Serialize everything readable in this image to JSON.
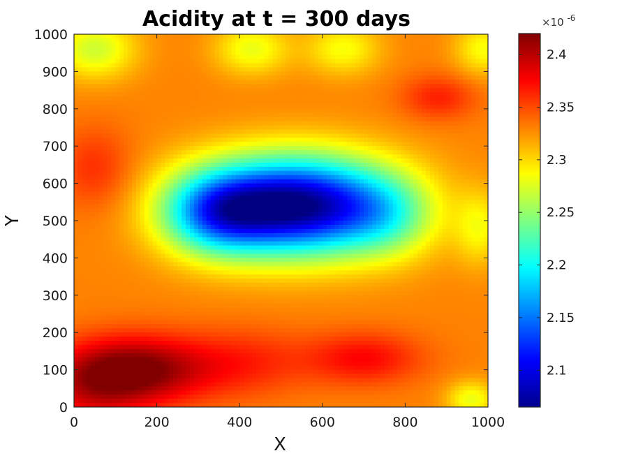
{
  "chart_data": {
    "type": "heatmap",
    "title": "Acidity at t = 300 days",
    "xlabel": "X",
    "ylabel": "Y",
    "xlim": [
      0,
      1000
    ],
    "ylim": [
      0,
      1000
    ],
    "x_ticks": [
      "0",
      "200",
      "400",
      "600",
      "800",
      "1000"
    ],
    "y_ticks": [
      "0",
      "100",
      "200",
      "300",
      "400",
      "500",
      "600",
      "700",
      "800",
      "900",
      "1000"
    ],
    "colormap": "jet",
    "colorbar": {
      "range": [
        2.065,
        2.42
      ],
      "ticks": [
        "2.1",
        "2.15",
        "2.2",
        "2.25",
        "2.3",
        "2.35",
        "2.4"
      ],
      "exponent_label": "×10",
      "exponent_power": "-6"
    },
    "field_base": 2.33,
    "features": [
      {
        "kind": "low",
        "x": 540,
        "y": 540,
        "amplitude": -0.265,
        "spread_x": 230,
        "spread_y": 130
      },
      {
        "kind": "low",
        "x": 340,
        "y": 520,
        "amplitude": -0.12,
        "spread_x": 130,
        "spread_y": 110
      },
      {
        "kind": "low",
        "x": 760,
        "y": 510,
        "amplitude": -0.05,
        "spread_x": 110,
        "spread_y": 110
      },
      {
        "kind": "high",
        "x": 150,
        "y": 100,
        "amplitude": 0.09,
        "spread_x": 180,
        "spread_y": 90
      },
      {
        "kind": "high",
        "x": 40,
        "y": 40,
        "amplitude": 0.04,
        "spread_x": 140,
        "spread_y": 100
      },
      {
        "kind": "high",
        "x": 420,
        "y": 120,
        "amplitude": 0.03,
        "spread_x": 150,
        "spread_y": 90
      },
      {
        "kind": "high",
        "x": 700,
        "y": 130,
        "amplitude": 0.045,
        "spread_x": 140,
        "spread_y": 70
      },
      {
        "kind": "high",
        "x": 880,
        "y": 830,
        "amplitude": 0.035,
        "spread_x": 90,
        "spread_y": 60
      },
      {
        "kind": "high",
        "x": 50,
        "y": 640,
        "amplitude": 0.03,
        "spread_x": 90,
        "spread_y": 110
      },
      {
        "kind": "low",
        "x": 50,
        "y": 960,
        "amplitude": -0.06,
        "spread_x": 100,
        "spread_y": 80
      },
      {
        "kind": "low",
        "x": 430,
        "y": 960,
        "amplitude": -0.05,
        "spread_x": 90,
        "spread_y": 70
      },
      {
        "kind": "low",
        "x": 650,
        "y": 960,
        "amplitude": -0.045,
        "spread_x": 90,
        "spread_y": 70
      },
      {
        "kind": "low",
        "x": 990,
        "y": 960,
        "amplitude": -0.045,
        "spread_x": 70,
        "spread_y": 70
      },
      {
        "kind": "low",
        "x": 960,
        "y": 20,
        "amplitude": -0.05,
        "spread_x": 60,
        "spread_y": 50
      },
      {
        "kind": "low",
        "x": 980,
        "y": 480,
        "amplitude": -0.04,
        "spread_x": 60,
        "spread_y": 100
      }
    ]
  }
}
